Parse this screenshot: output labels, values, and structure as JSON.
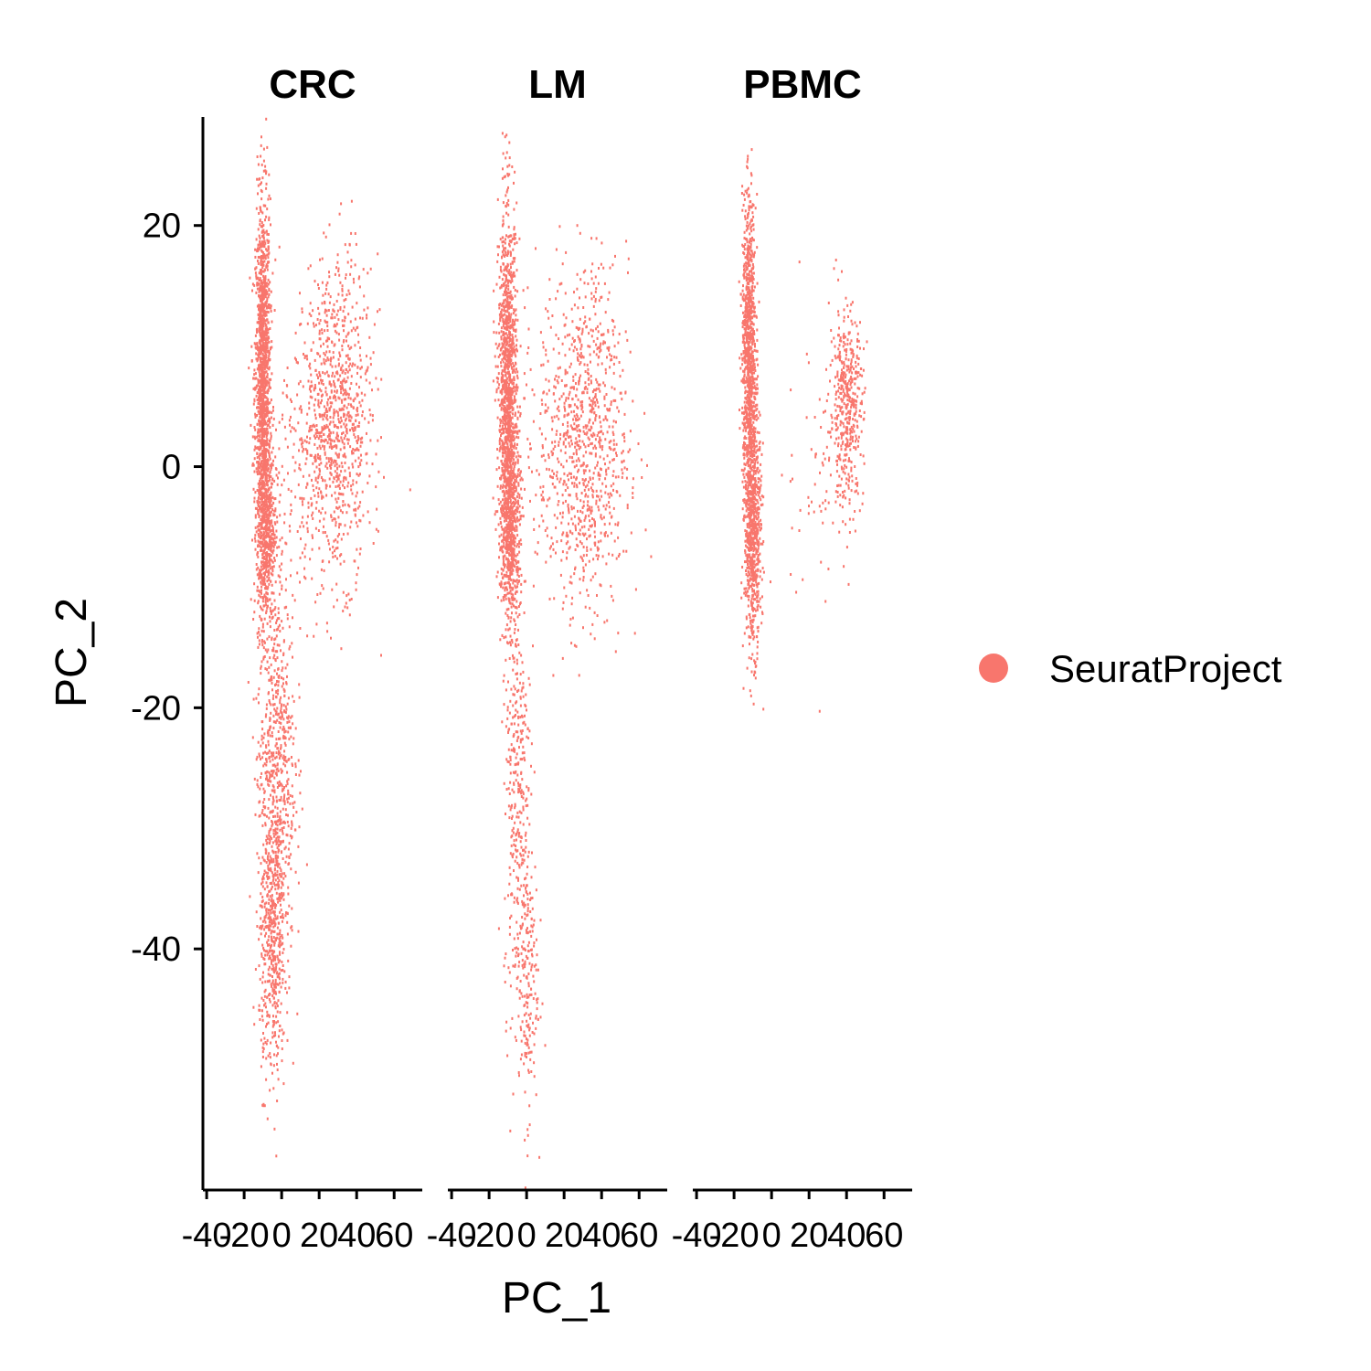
{
  "chart_data": {
    "type": "scatter",
    "xlabel": "PC_1",
    "ylabel": "PC_2",
    "xlim": [
      -42,
      75
    ],
    "ylim": [
      -60,
      29
    ],
    "x_ticks": [
      -40,
      -20,
      0,
      20,
      40,
      60
    ],
    "x_tick_labels": [
      "-40",
      "-20",
      "0",
      "20",
      "40",
      "60"
    ],
    "y_ticks": [
      -40,
      -20,
      0,
      20
    ],
    "y_tick_labels": [
      "-40",
      "-20",
      "0",
      "20"
    ],
    "grid": false,
    "point_color": "#F8766D",
    "legend": {
      "placement": "right",
      "entries": [
        {
          "label": "SeuratProject",
          "color": "#F8766D"
        }
      ]
    },
    "facets": [
      {
        "title": "CRC",
        "clusters": [
          {
            "center": [
              -10,
              7
            ],
            "spread": [
              2.0,
              7.5
            ],
            "n": 1400
          },
          {
            "center": [
              -8,
              -5
            ],
            "spread": [
              2.5,
              4.0
            ],
            "n": 500
          },
          {
            "center": [
              -3,
              -25
            ],
            "spread": [
              5.0,
              8.0
            ],
            "n": 700
          },
          {
            "center": [
              -5,
              -40
            ],
            "spread": [
              3.5,
              5.5
            ],
            "n": 450
          },
          {
            "center": [
              30,
              4
            ],
            "spread": [
              9.0,
              6.5
            ],
            "n": 900
          },
          {
            "center": [
              10,
              0
            ],
            "spread": [
              9.0,
              6.0
            ],
            "n": 180
          }
        ]
      },
      {
        "title": "LM",
        "clusters": [
          {
            "center": [
              -10,
              5
            ],
            "spread": [
              2.5,
              8.0
            ],
            "n": 1400
          },
          {
            "center": [
              -8,
              -5
            ],
            "spread": [
              2.5,
              3.5
            ],
            "n": 400
          },
          {
            "center": [
              30,
              2
            ],
            "spread": [
              12.0,
              7.0
            ],
            "n": 1000
          },
          {
            "center": [
              -5,
              -25
            ],
            "spread": [
              3.5,
              10.0
            ],
            "n": 350
          },
          {
            "center": [
              0,
              -42
            ],
            "spread": [
              3.0,
              6.0
            ],
            "n": 200
          }
        ]
      },
      {
        "title": "PBMC",
        "clusters": [
          {
            "center": [
              -12,
              10
            ],
            "spread": [
              1.8,
              6.0
            ],
            "n": 900
          },
          {
            "center": [
              -10,
              -5
            ],
            "spread": [
              2.2,
              5.0
            ],
            "n": 800
          },
          {
            "center": [
              40,
              5
            ],
            "spread": [
              4.5,
              4.0
            ],
            "n": 450
          },
          {
            "center": [
              25,
              0
            ],
            "spread": [
              9.0,
              6.0
            ],
            "n": 60
          }
        ]
      }
    ]
  }
}
